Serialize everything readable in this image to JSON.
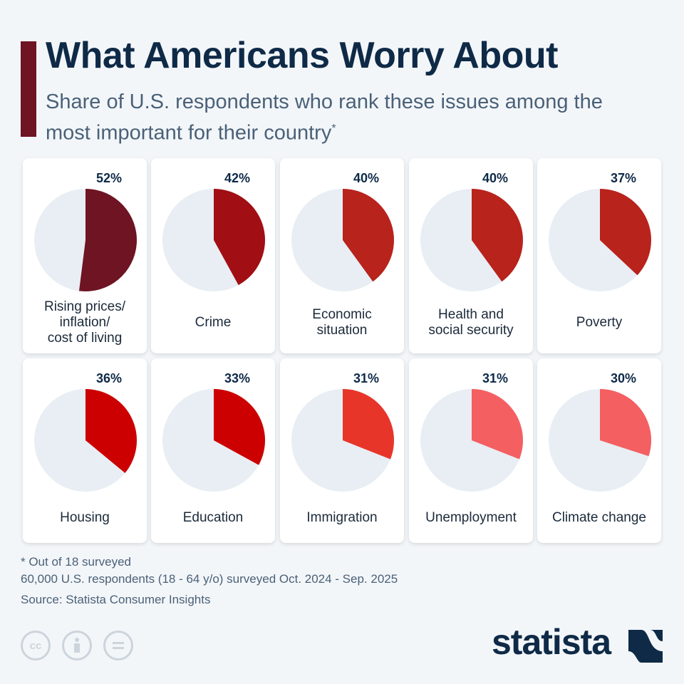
{
  "title": "What Americans Worry About",
  "subtitle": "Share of U.S. respondents who rank these issues among the most important for their country",
  "subtitle_mark": "*",
  "chart_data": {
    "type": "pie",
    "unit": "%",
    "items": [
      {
        "label": "Rising prices/\ninflation/\ncost of living",
        "value": 52,
        "value_label": "52%",
        "color": "#6e1423"
      },
      {
        "label": "Crime",
        "value": 42,
        "value_label": "42%",
        "color": "#a10e14"
      },
      {
        "label": "Economic\nsituation",
        "value": 40,
        "value_label": "40%",
        "color": "#b8231c"
      },
      {
        "label": "Health and\nsocial security",
        "value": 40,
        "value_label": "40%",
        "color": "#b8231c"
      },
      {
        "label": "Poverty",
        "value": 37,
        "value_label": "37%",
        "color": "#b8231c"
      },
      {
        "label": "Housing",
        "value": 36,
        "value_label": "36%",
        "color": "#cc0000"
      },
      {
        "label": "Education",
        "value": 33,
        "value_label": "33%",
        "color": "#cc0000"
      },
      {
        "label": "Immigration",
        "value": 31,
        "value_label": "31%",
        "color": "#e8352a"
      },
      {
        "label": "Unemployment",
        "value": 31,
        "value_label": "31%",
        "color": "#f45f62"
      },
      {
        "label": "Climate change",
        "value": 30,
        "value_label": "30%",
        "color": "#f45f62"
      }
    ],
    "remainder_color": "#e8eef3"
  },
  "footer": {
    "note1": "* Out of 18 surveyed",
    "note2": "60,000 U.S. respondents (18 - 64 y/o) surveyed Oct. 2024 - Sep. 2025",
    "source": "Source: Statista Consumer Insights",
    "cc_icons": [
      "cc-icon",
      "attribution-icon",
      "no-derivatives-icon"
    ],
    "brand": "statista"
  }
}
